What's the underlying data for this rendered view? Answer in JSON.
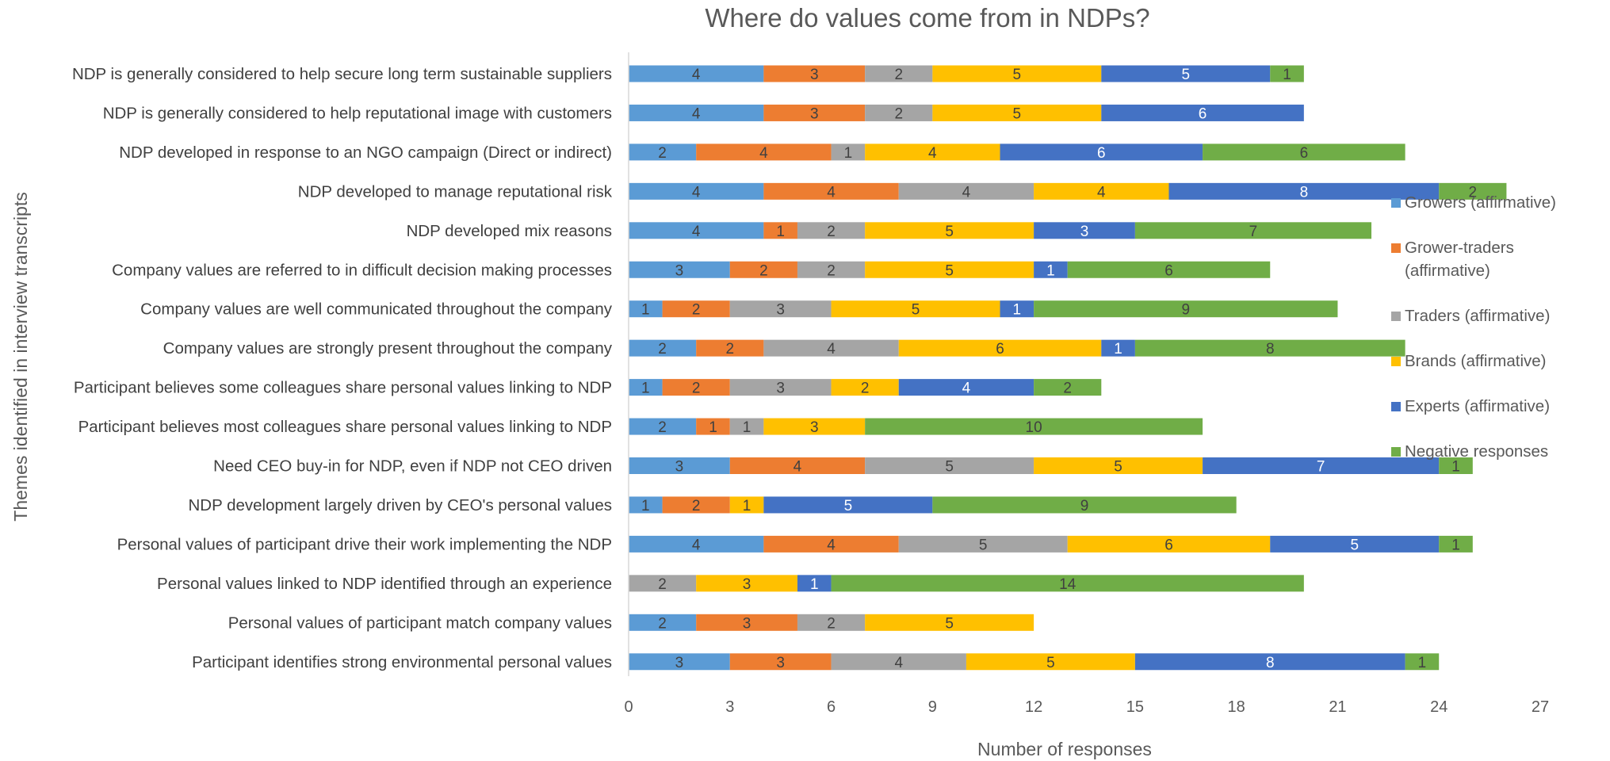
{
  "chart_data": {
    "type": "bar",
    "orientation": "horizontal",
    "stacked": true,
    "title": "Where do values come from in NDPs?",
    "xlabel": "Number of responses",
    "ylabel": "Themes identified in interview transcripts",
    "xlim": [
      0,
      27
    ],
    "xticks": [
      0,
      3,
      6,
      9,
      12,
      15,
      18,
      21,
      24,
      27
    ],
    "grid": false,
    "legend_position": "right",
    "categories": [
      "NDP is generally considered to help secure long term sustainable suppliers",
      "NDP is generally considered to help reputational image with customers",
      "NDP developed in response to an NGO campaign (Direct or indirect)",
      "NDP developed to manage reputational risk",
      "NDP developed mix reasons",
      "Company values are referred to in difficult decision making processes",
      "Company values are well communicated throughout the company",
      "Company values are strongly present throughout the company",
      "Participant believes some colleagues share personal values linking to NDP",
      "Participant believes most colleagues share personal values linking to NDP",
      "Need CEO buy-in for NDP, even if NDP not CEO driven",
      "NDP development  largely driven by CEO's personal values",
      "Personal values of participant drive their work implementing  the NDP",
      "Personal values linked to NDP  identified through an experience",
      "Personal values of participant match company values",
      "Participant identifies strong environmental personal values"
    ],
    "series": [
      {
        "name": "Growers (affirmative)",
        "color": "#5B9BD5",
        "label_color": "#404040",
        "values": [
          4,
          4,
          2,
          4,
          4,
          3,
          1,
          2,
          1,
          2,
          3,
          1,
          4,
          0,
          2,
          3
        ]
      },
      {
        "name": "Grower-traders (affirmative)",
        "color": "#ED7D31",
        "label_color": "#404040",
        "values": [
          3,
          3,
          4,
          4,
          1,
          2,
          2,
          2,
          2,
          1,
          4,
          2,
          4,
          0,
          3,
          3
        ]
      },
      {
        "name": "Traders (affirmative)",
        "color": "#A5A5A5",
        "label_color": "#404040",
        "values": [
          2,
          2,
          1,
          4,
          2,
          2,
          3,
          4,
          3,
          1,
          5,
          0,
          5,
          2,
          2,
          4
        ]
      },
      {
        "name": "Brands (affirmative)",
        "color": "#FFC000",
        "label_color": "#404040",
        "values": [
          5,
          5,
          4,
          4,
          5,
          5,
          5,
          6,
          2,
          3,
          5,
          1,
          6,
          3,
          5,
          5
        ]
      },
      {
        "name": "Experts (affirmative)",
        "color": "#4472C4",
        "label_color": "#ffffff",
        "values": [
          5,
          6,
          6,
          8,
          3,
          1,
          1,
          1,
          4,
          0,
          7,
          5,
          5,
          1,
          0,
          8
        ]
      },
      {
        "name": "Negative responses",
        "color": "#70AD47",
        "label_color": "#404040",
        "values": [
          1,
          0,
          6,
          2,
          7,
          6,
          9,
          8,
          2,
          10,
          1,
          9,
          1,
          14,
          0,
          1
        ]
      }
    ]
  }
}
